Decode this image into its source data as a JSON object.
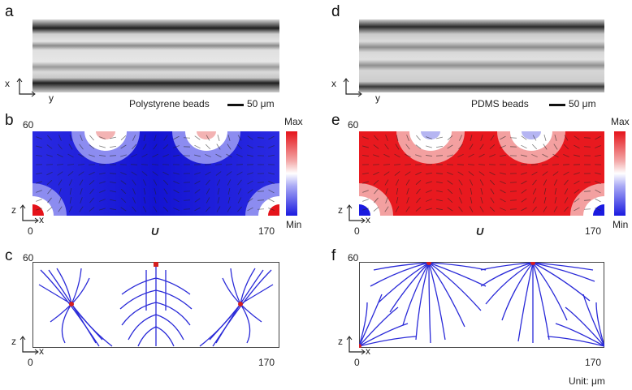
{
  "panels": {
    "a": {
      "label": "a",
      "caption": "Polystyrene beads",
      "scale": "50 μm",
      "axis_v": "x",
      "axis_h": "y"
    },
    "b": {
      "label": "b",
      "axis_v": "z",
      "axis_h": "x",
      "z_max": "60",
      "x_min": "0",
      "x_max": "170",
      "field": "U",
      "cbar_max": "Max",
      "cbar_min": "Min"
    },
    "c": {
      "label": "c",
      "axis_v": "z",
      "axis_h": "x",
      "z_max": "60",
      "x_min": "0",
      "x_max": "170"
    },
    "d": {
      "label": "d",
      "caption": "PDMS beads",
      "scale": "50 μm",
      "axis_v": "x",
      "axis_h": "y"
    },
    "e": {
      "label": "e",
      "axis_v": "z",
      "axis_h": "x",
      "z_max": "60",
      "x_min": "0",
      "x_max": "170",
      "field": "U",
      "cbar_max": "Max",
      "cbar_min": "Min"
    },
    "f": {
      "label": "f",
      "axis_v": "z",
      "axis_h": "x",
      "z_max": "60",
      "x_min": "0",
      "x_max": "170"
    }
  },
  "unit_note": "Unit:  μm",
  "colors": {
    "hot": "#e5131a",
    "cold": "#1a1ae0",
    "streamline": "#2a2ad8",
    "node": "#d42020"
  }
}
